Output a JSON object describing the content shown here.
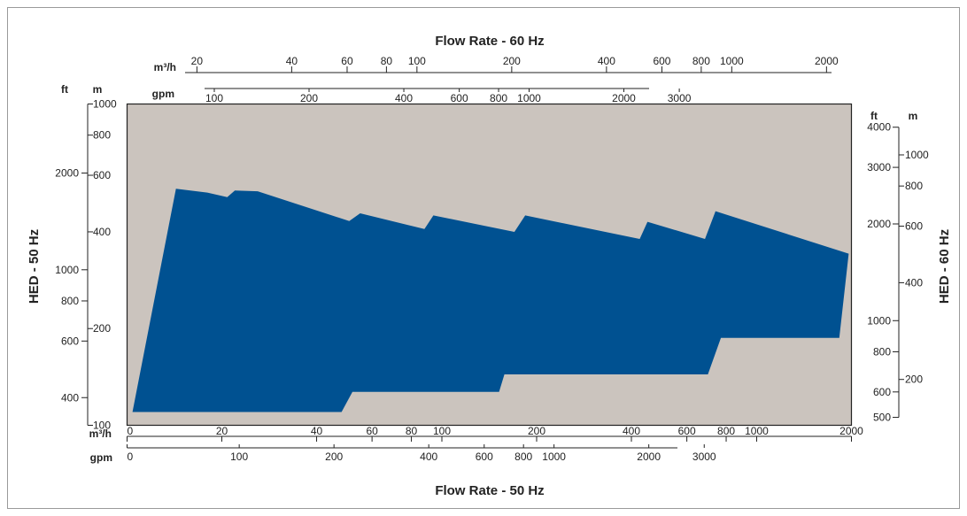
{
  "chart_data": {
    "type": "area",
    "title_top": "Flow Rate - 60 Hz",
    "title_bottom": "Flow Rate - 50 Hz",
    "ylabel_left": "HED - 50 Hz",
    "ylabel_right": "HED - 60 Hz",
    "x_scale": "log",
    "y_scale": "log",
    "xlim_m3h_50hz": [
      10,
      2000
    ],
    "ylim_m_50hz": [
      100,
      1000
    ],
    "axes": {
      "top_m3h": {
        "unit": "m³/h",
        "ticks": [
          "20",
          "40",
          "60",
          "80",
          "100",
          "200",
          "400",
          "600",
          "800",
          "1000",
          "2000"
        ]
      },
      "top_gpm": {
        "unit": "gpm",
        "ticks": [
          "100",
          "200",
          "400",
          "600",
          "800",
          "1000",
          "2000",
          "3000"
        ]
      },
      "bottom_m3h": {
        "unit": "m³/h",
        "ticks": [
          "0",
          "20",
          "40",
          "60",
          "80",
          "100",
          "200",
          "400",
          "600",
          "800",
          "1000",
          "2000"
        ]
      },
      "bottom_gpm": {
        "unit": "gpm",
        "ticks": [
          "0",
          "100",
          "200",
          "400",
          "600",
          "800",
          "1000",
          "2000",
          "3000"
        ]
      },
      "left_ft": {
        "unit": "ft",
        "ticks": [
          "2000",
          "1000",
          "800",
          "600",
          "400"
        ]
      },
      "left_m": {
        "unit": "m",
        "ticks": [
          "1000",
          "800",
          "600",
          "400",
          "200",
          "100"
        ]
      },
      "right_ft": {
        "unit": "ft",
        "ticks": [
          "4000",
          "3000",
          "2000",
          "1000",
          "800",
          "600",
          "500"
        ]
      },
      "right_m": {
        "unit": "m",
        "ticks": [
          "1000",
          "800",
          "600",
          "400",
          "200"
        ]
      }
    },
    "series": [
      {
        "fill": "#005191",
        "upper_envelope": [
          {
            "x": 10.4,
            "y": 110
          },
          {
            "x": 14.3,
            "y": 545
          },
          {
            "x": 18,
            "y": 530
          },
          {
            "x": 20.8,
            "y": 513
          },
          {
            "x": 22,
            "y": 538
          },
          {
            "x": 26,
            "y": 535
          },
          {
            "x": 50.8,
            "y": 432
          },
          {
            "x": 55,
            "y": 457
          },
          {
            "x": 88,
            "y": 408
          },
          {
            "x": 94,
            "y": 450
          },
          {
            "x": 170,
            "y": 400
          },
          {
            "x": 184,
            "y": 450
          },
          {
            "x": 425,
            "y": 380
          },
          {
            "x": 450,
            "y": 430
          },
          {
            "x": 685,
            "y": 380
          },
          {
            "x": 740,
            "y": 464
          },
          {
            "x": 1960,
            "y": 342
          }
        ],
        "lower_envelope": [
          {
            "x": 1960,
            "y": 342
          },
          {
            "x": 1830,
            "y": 187
          },
          {
            "x": 770,
            "y": 187
          },
          {
            "x": 700,
            "y": 144
          },
          {
            "x": 158,
            "y": 144
          },
          {
            "x": 152,
            "y": 127
          },
          {
            "x": 52,
            "y": 127
          },
          {
            "x": 48,
            "y": 110
          }
        ]
      }
    ],
    "bg_color": "#cbc4be",
    "area_color": "#005191"
  }
}
